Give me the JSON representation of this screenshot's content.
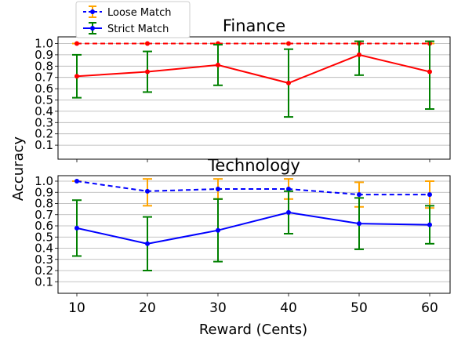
{
  "chart_data": {
    "type": "line",
    "ylabel": "Accuracy",
    "xlabel": "Reward (Cents)",
    "x": [
      10,
      20,
      30,
      40,
      50,
      60
    ],
    "xticks": [
      "10",
      "20",
      "30",
      "40",
      "50",
      "60"
    ],
    "yticks": [
      "0.1",
      "0.2",
      "0.3",
      "0.4",
      "0.5",
      "0.6",
      "0.7",
      "0.8",
      "0.9",
      "1.0"
    ],
    "ylim": [
      0,
      1.02
    ],
    "grid": "horizontal",
    "legend": {
      "placement": "top-left",
      "entries": [
        {
          "label": "Loose Match",
          "style": "dashed",
          "color": "#0000ff",
          "errorbar_color": "#ffa500"
        },
        {
          "label": "Strict Match",
          "style": "solid",
          "color": "#0000ff",
          "errorbar_color": "#008000"
        }
      ]
    },
    "panels": [
      {
        "title": "Finance",
        "line_color": "#ff0000",
        "series": [
          {
            "name": "Loose Match",
            "style": "dashed",
            "errorbar_color": "#ffa500",
            "values": [
              1.0,
              1.0,
              1.0,
              1.0,
              1.0,
              1.0
            ],
            "err": [
              0,
              0,
              0,
              0,
              0,
              0
            ]
          },
          {
            "name": "Strict Match",
            "style": "solid",
            "errorbar_color": "#008000",
            "values": [
              0.71,
              0.75,
              0.81,
              0.65,
              0.9,
              0.75
            ],
            "err": [
              0.19,
              0.18,
              0.18,
              0.3,
              0.18,
              0.33
            ]
          }
        ]
      },
      {
        "title": "Technology",
        "line_color": "#0000ff",
        "series": [
          {
            "name": "Loose Match",
            "style": "dashed",
            "errorbar_color": "#ffa500",
            "values": [
              1.0,
              0.91,
              0.93,
              0.93,
              0.88,
              0.88
            ],
            "err": [
              0,
              0.13,
              0.09,
              0.09,
              0.11,
              0.12
            ]
          },
          {
            "name": "Strict Match",
            "style": "solid",
            "errorbar_color": "#008000",
            "values": [
              0.58,
              0.44,
              0.56,
              0.72,
              0.62,
              0.61
            ],
            "err": [
              0.25,
              0.24,
              0.28,
              0.19,
              0.23,
              0.17
            ]
          }
        ]
      }
    ]
  }
}
